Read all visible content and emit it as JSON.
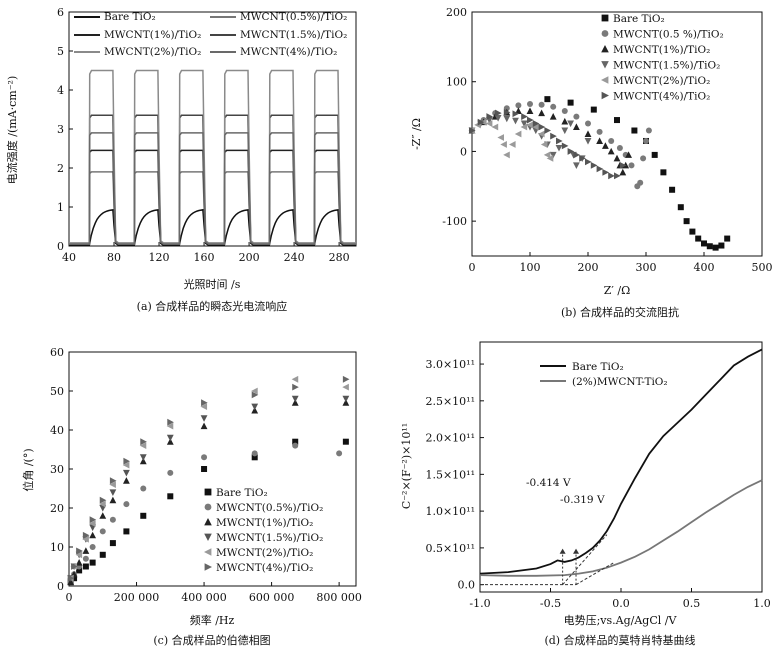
{
  "panels": {
    "a": {
      "caption": "(a) 合成样品的瞬态光电流响应",
      "xlabel": "光照时间 /s",
      "ylabel": "电流强度 /(mA·cm⁻²)",
      "xticks": [
        "40",
        "80",
        "120",
        "160",
        "200",
        "240",
        "280"
      ],
      "yticks": [
        "0",
        "1",
        "2",
        "3",
        "4",
        "5",
        "6"
      ]
    },
    "b": {
      "caption": "(b) 合成样品的交流阻抗",
      "xlabel": "Z′ /Ω",
      "ylabel": "-Z″ /Ω",
      "xticks": [
        "0",
        "100",
        "200",
        "300",
        "400",
        "500"
      ],
      "yticks": [
        "-100",
        "0",
        "100",
        "200"
      ]
    },
    "c": {
      "caption": "(c) 合成样品的伯德相图",
      "xlabel": "频率 /Hz",
      "ylabel": "位角 /(°)",
      "xticks": [
        "0",
        "200 000",
        "400 000",
        "600 000",
        "800 000"
      ],
      "yticks": [
        "0",
        "10",
        "20",
        "30",
        "40",
        "50",
        "60"
      ]
    },
    "d": {
      "caption": "(d) 合成样品的莫特肖特基曲线",
      "xlabel": "电势压;vs.Ag/AgCl /V",
      "ylabel": "C⁻²×(F⁻²)×10¹¹",
      "xticks": [
        "-1.0",
        "-0.5",
        "0.0",
        "0.5",
        "1.0"
      ],
      "yticks": [
        "0.0",
        "0.5×10¹¹",
        "1.0×10¹¹",
        "1.5×10¹¹",
        "2.0×10¹¹",
        "2.5×10¹¹",
        "3.0×10¹¹"
      ],
      "annotations": [
        "-0.414 V",
        "-0.319 V"
      ]
    }
  },
  "chart_data": [
    {
      "id": "a",
      "type": "line",
      "title": "(a) 合成样品的瞬态光电流响应",
      "xlabel": "光照时间 /s",
      "ylabel": "电流强度 /(mA·cm⁻²)",
      "xlim": [
        40,
        295
      ],
      "ylim": [
        0,
        6
      ],
      "light_on_periods": [
        [
          58,
          80
        ],
        [
          98,
          120
        ],
        [
          138,
          160
        ],
        [
          178,
          200
        ],
        [
          218,
          240
        ],
        [
          258,
          280
        ]
      ],
      "series": [
        {
          "name": "Bare TiO₂",
          "peak": 0.95,
          "dark": 0.02
        },
        {
          "name": "MWCNT(0.5%)/TiO₂",
          "peak": 1.9,
          "dark": 0.05
        },
        {
          "name": "MWCNT(1%)/TiO₂",
          "peak": 2.45,
          "dark": 0.05
        },
        {
          "name": "MWCNT(1.5%)/TiO₂",
          "peak": 3.35,
          "dark": 0.05
        },
        {
          "name": "MWCNT(2%)/TiO₂",
          "peak": 4.5,
          "dark": 0.08
        },
        {
          "name": "MWCNT(4%)/TiO₂",
          "peak": 2.9,
          "dark": 0.05
        }
      ]
    },
    {
      "id": "b",
      "type": "scatter",
      "title": "(b) 合成样品的交流阻抗",
      "xlabel": "Z′ /Ω",
      "ylabel": "-Z″ /Ω",
      "xlim": [
        0,
        500
      ],
      "ylim": [
        -150,
        200
      ],
      "series": [
        {
          "name": "Bare TiO₂",
          "marker": "square",
          "x": [
            130,
            170,
            210,
            250,
            280,
            300,
            315,
            330,
            345,
            360,
            370,
            380,
            390,
            400,
            410,
            420,
            430,
            440
          ],
          "y": [
            75,
            70,
            60,
            45,
            30,
            15,
            -5,
            -30,
            -55,
            -80,
            -100,
            -115,
            -125,
            -132,
            -136,
            -138,
            -135,
            -125
          ]
        },
        {
          "name": "MWCNT(0.5 %)/TiO₂",
          "marker": "circle",
          "x": [
            0,
            20,
            40,
            60,
            80,
            100,
            120,
            140,
            160,
            180,
            200,
            220,
            240,
            255,
            265,
            275,
            285,
            290,
            295,
            300,
            305
          ],
          "y": [
            30,
            45,
            55,
            62,
            66,
            68,
            67,
            64,
            58,
            50,
            40,
            28,
            15,
            5,
            -5,
            -20,
            -50,
            -45,
            -10,
            15,
            30
          ]
        },
        {
          "name": "MWCNT(1%)/TiO₂",
          "marker": "triangle-up",
          "x": [
            0,
            20,
            40,
            60,
            80,
            100,
            120,
            140,
            160,
            180,
            200,
            220,
            230,
            240,
            250,
            255,
            260,
            265,
            270
          ],
          "y": [
            30,
            42,
            50,
            56,
            58,
            58,
            55,
            50,
            43,
            35,
            25,
            15,
            8,
            0,
            -10,
            -20,
            -30,
            -20,
            -5
          ]
        },
        {
          "name": "MWCNT(1.5%)/TiO₂",
          "marker": "triangle-down",
          "x": [
            0,
            15,
            30,
            45,
            60,
            75,
            90,
            100,
            110,
            120,
            130,
            140,
            150,
            160,
            170,
            175,
            180,
            190,
            200
          ],
          "y": [
            30,
            40,
            45,
            48,
            47,
            44,
            40,
            35,
            30,
            22,
            10,
            -5,
            5,
            30,
            40,
            -5,
            -20,
            -10,
            15
          ]
        },
        {
          "name": "MWCNT(2%)/TiO₂",
          "marker": "triangle-left",
          "x": [
            0,
            10,
            20,
            30,
            40,
            50,
            55,
            60,
            70,
            80,
            90,
            100,
            110,
            120,
            125,
            130,
            135
          ],
          "y": [
            30,
            38,
            42,
            40,
            35,
            20,
            10,
            -5,
            10,
            25,
            35,
            38,
            35,
            25,
            10,
            -5,
            -10
          ]
        },
        {
          "name": "MWCNT(4%)/TiO₂",
          "marker": "triangle-right",
          "x": [
            0,
            15,
            30,
            45,
            60,
            75,
            90,
            100,
            110,
            120,
            130,
            140,
            150,
            160,
            170,
            180,
            190,
            200,
            210,
            220,
            230,
            240,
            250,
            260
          ],
          "y": [
            30,
            42,
            50,
            55,
            56,
            54,
            50,
            45,
            40,
            35,
            30,
            22,
            15,
            8,
            0,
            -5,
            -10,
            -15,
            -20,
            -25,
            -30,
            -35,
            -35,
            -20
          ]
        }
      ]
    },
    {
      "id": "c",
      "type": "scatter",
      "title": "(c) 合成样品的伯德相图",
      "xlabel": "频率 /Hz",
      "ylabel": "位角 /(°)",
      "xlim": [
        0,
        850000
      ],
      "ylim": [
        0,
        60
      ],
      "series": [
        {
          "name": "Bare TiO₂",
          "marker": "square",
          "x": [
            5000,
            15000,
            30000,
            50000,
            70000,
            100000,
            130000,
            170000,
            220000,
            300000,
            400000,
            550000,
            670000,
            820000
          ],
          "y": [
            1,
            2,
            4,
            5,
            6,
            8,
            11,
            14,
            18,
            23,
            30,
            33,
            37,
            37
          ]
        },
        {
          "name": "MWCNT(0.5%)/TiO₂",
          "marker": "circle",
          "x": [
            5000,
            15000,
            30000,
            50000,
            70000,
            100000,
            130000,
            170000,
            220000,
            300000,
            400000,
            550000,
            670000,
            800000
          ],
          "y": [
            1,
            3,
            5,
            7,
            10,
            14,
            17,
            21,
            25,
            29,
            33,
            34,
            36,
            34
          ]
        },
        {
          "name": "MWCNT(1%)/TiO₂",
          "marker": "triangle-up",
          "x": [
            5000,
            15000,
            30000,
            50000,
            70000,
            100000,
            130000,
            170000,
            220000,
            300000,
            400000,
            550000,
            670000,
            820000
          ],
          "y": [
            1,
            3,
            6,
            9,
            13,
            18,
            22,
            27,
            32,
            37,
            41,
            45,
            47,
            47
          ]
        },
        {
          "name": "MWCNT(1.5%)/TiO₂",
          "marker": "triangle-down",
          "x": [
            5000,
            15000,
            30000,
            50000,
            70000,
            100000,
            130000,
            170000,
            220000,
            300000,
            400000,
            550000,
            670000,
            820000
          ],
          "y": [
            2,
            5,
            8,
            12,
            15,
            20,
            24,
            29,
            33,
            38,
            43,
            46,
            48,
            48
          ]
        },
        {
          "name": "MWCNT(2%)/TiO₂",
          "marker": "triangle-left",
          "x": [
            5000,
            15000,
            30000,
            50000,
            70000,
            100000,
            130000,
            170000,
            220000,
            300000,
            400000,
            550000,
            670000,
            820000
          ],
          "y": [
            2,
            5,
            8,
            12,
            16,
            21,
            26,
            31,
            36,
            41,
            46,
            50,
            53,
            51
          ]
        },
        {
          "name": "MWCNT(4%)/TiO₂",
          "marker": "triangle-right",
          "x": [
            5000,
            15000,
            30000,
            50000,
            70000,
            100000,
            130000,
            170000,
            220000,
            300000,
            400000,
            550000,
            670000,
            820000
          ],
          "y": [
            2,
            5,
            9,
            13,
            17,
            22,
            27,
            32,
            37,
            42,
            47,
            49,
            51,
            53
          ]
        }
      ]
    },
    {
      "id": "d",
      "type": "line",
      "title": "(d) 合成样品的莫特肖特基曲线",
      "xlabel": "电势压;vs.Ag/AgCl /V",
      "ylabel": "C⁻²×(F⁻²)×10¹¹",
      "xlim": [
        -1.0,
        1.0
      ],
      "ylim": [
        -0.1,
        3.3
      ],
      "series": [
        {
          "name": "Bare TiO₂",
          "x": [
            -1.0,
            -0.8,
            -0.6,
            -0.5,
            -0.45,
            -0.4,
            -0.35,
            -0.3,
            -0.25,
            -0.2,
            -0.15,
            -0.1,
            -0.05,
            0.0,
            0.1,
            0.2,
            0.3,
            0.4,
            0.5,
            0.6,
            0.7,
            0.8,
            0.9,
            1.0
          ],
          "y": [
            0.15,
            0.17,
            0.22,
            0.28,
            0.33,
            0.31,
            0.33,
            0.37,
            0.43,
            0.5,
            0.6,
            0.73,
            0.9,
            1.1,
            1.45,
            1.78,
            2.02,
            2.2,
            2.38,
            2.58,
            2.78,
            2.98,
            3.1,
            3.2
          ]
        },
        {
          "name": "(2%)MWCNT-TiO₂",
          "x": [
            -1.0,
            -0.8,
            -0.6,
            -0.4,
            -0.3,
            -0.2,
            -0.1,
            0.0,
            0.1,
            0.2,
            0.3,
            0.4,
            0.5,
            0.6,
            0.7,
            0.8,
            0.9,
            1.0
          ],
          "y": [
            0.13,
            0.12,
            0.12,
            0.13,
            0.15,
            0.18,
            0.23,
            0.3,
            0.38,
            0.48,
            0.6,
            0.72,
            0.85,
            0.98,
            1.1,
            1.22,
            1.33,
            1.42
          ]
        }
      ],
      "annotations": [
        {
          "text": "-0.414 V",
          "x": -0.414
        },
        {
          "text": "-0.319 V",
          "x": -0.319
        }
      ]
    }
  ],
  "colors": {
    "black": "#111111",
    "gray": "#777777",
    "dark_gray": "#444444",
    "mid_gray": "#8a8a8a",
    "light_gray": "#a6a6a6",
    "mid_gray_2": "#696969"
  }
}
